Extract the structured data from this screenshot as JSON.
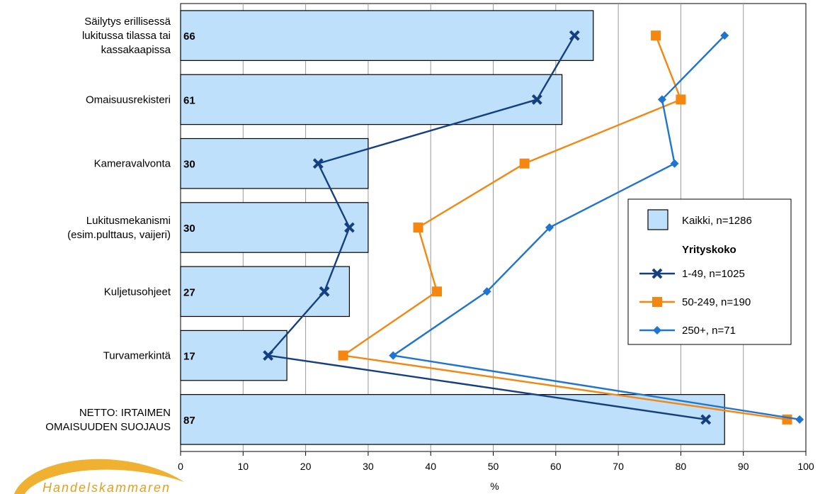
{
  "chart_data": {
    "type": "bar",
    "orientation": "horizontal",
    "categories": [
      "Säilytys erillisessä lukitussa tilassa tai kassakaapissa",
      "Omaisuusrekisteri",
      "Kameravalvonta",
      "Lukitusmekanismi (esim.pulttaus, vaijeri)",
      "Kuljetusohjeet",
      "Turvamerkintä",
      "NETTO: IRTAIMEN OMAISUUDEN SUOJAUS"
    ],
    "category_lines": [
      [
        "Säilytys erillisessä",
        "lukitussa tilassa tai",
        "kassakaapissa"
      ],
      [
        "Omaisuusrekisteri"
      ],
      [
        "Kameravalvonta"
      ],
      [
        "Lukitusmekanismi",
        "(esim.pulttaus, vaijeri)"
      ],
      [
        "Kuljetusohjeet"
      ],
      [
        "Turvamerkintä"
      ],
      [
        "NETTO: IRTAIMEN",
        "OMAISUUDEN SUOJAUS"
      ]
    ],
    "bars": {
      "name": "Kaikki, n=1286",
      "color": "#bfe0fb",
      "values": [
        66,
        61,
        30,
        30,
        27,
        17,
        87
      ],
      "value_labels": [
        "66",
        "61",
        "30",
        "30",
        "27",
        "17",
        "87"
      ]
    },
    "series": [
      {
        "name": "1-49, n=1025",
        "color": "#153f7e",
        "marker": "x",
        "values": [
          63,
          57,
          22,
          27,
          23,
          14,
          84
        ]
      },
      {
        "name": "50-249, n=190",
        "color": "#f5860f",
        "marker": "square",
        "values": [
          76,
          80,
          55,
          38,
          41,
          26,
          97
        ]
      },
      {
        "name": "250+, n=71",
        "color": "#1f74d0",
        "marker": "diamond",
        "values": [
          87,
          77,
          79,
          59,
          49,
          34,
          99
        ]
      }
    ],
    "legend_title": "Yrityskoko",
    "legend_position": "right",
    "xlabel": "%",
    "xlim": [
      0,
      100
    ],
    "xticks": [
      0,
      10,
      20,
      30,
      40,
      50,
      60,
      70,
      80,
      90,
      100
    ],
    "grid": true
  },
  "logo": {
    "text": "Handelskammaren"
  }
}
